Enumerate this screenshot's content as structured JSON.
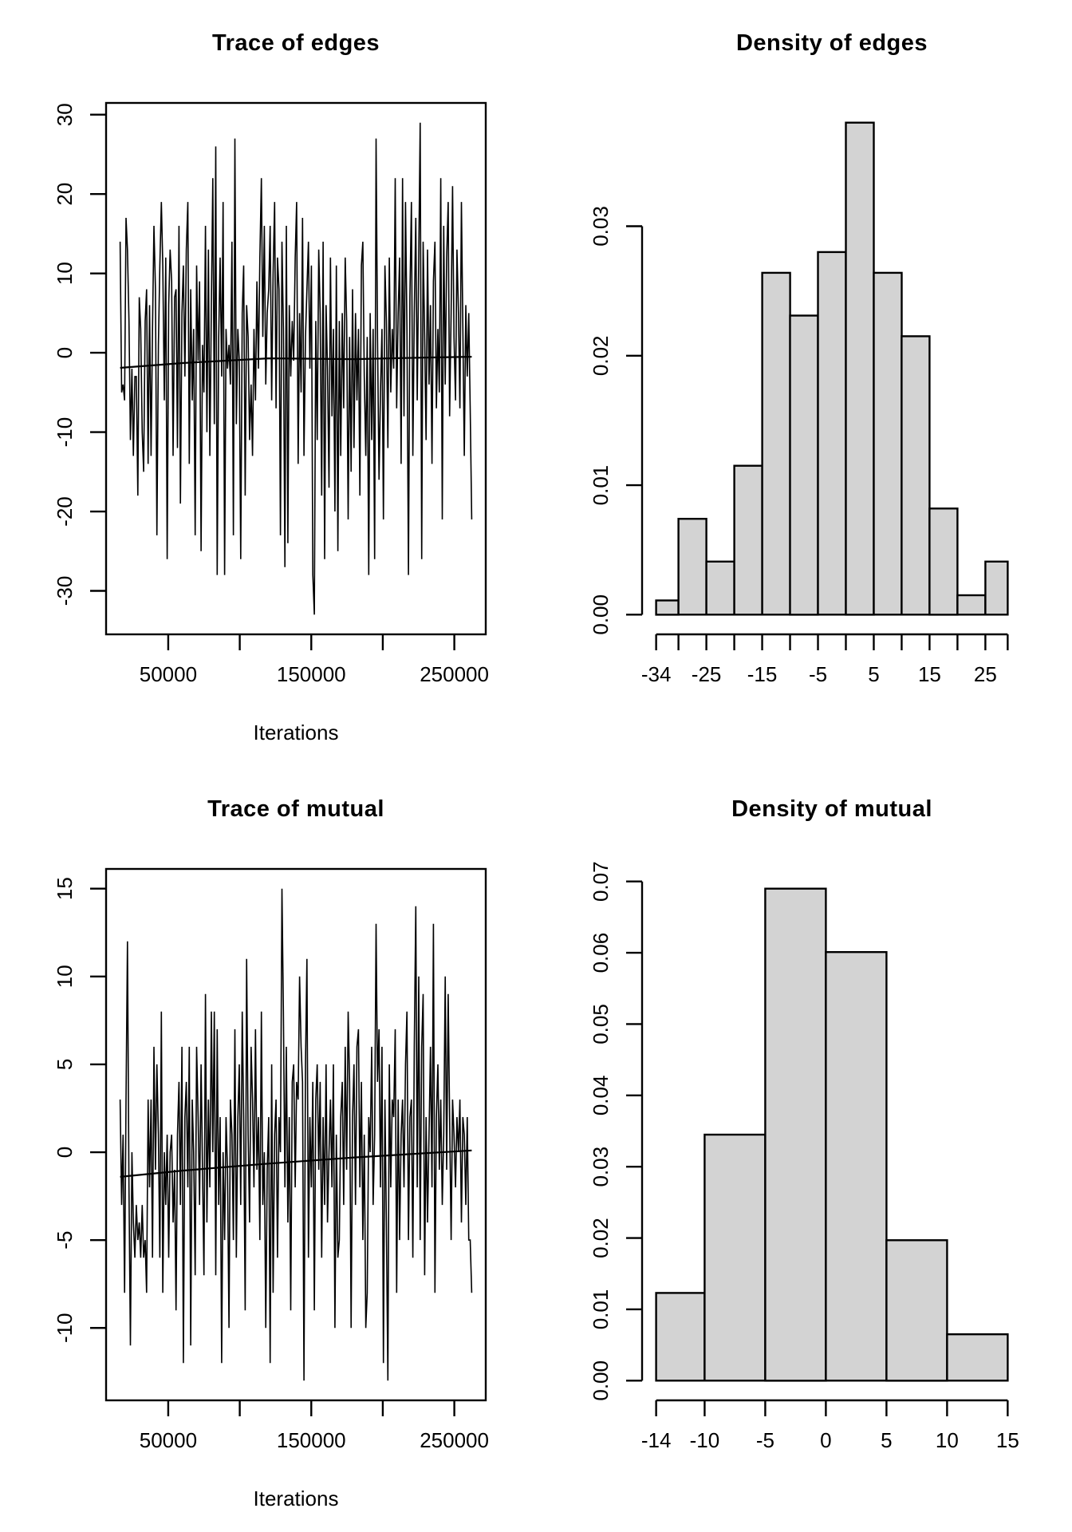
{
  "colors": {
    "background": "#ffffff",
    "foreground": "#000000",
    "histogram_fill": "#d3d3d3"
  },
  "chart_data": [
    {
      "type": "line",
      "title": "Trace of edges",
      "xlabel": "Iterations",
      "xlim": [
        6554,
        271974
      ],
      "ylim": [
        -35.48,
        31.48
      ],
      "x_start": 16384,
      "x_step": 1028.28,
      "xtick_values": [
        50000,
        100000,
        150000,
        200000,
        250000
      ],
      "xtick_labels": [
        "50000",
        "",
        "150000",
        "",
        "250000"
      ],
      "ytick_values": [
        30,
        20,
        10,
        0,
        -10,
        -20,
        -30
      ],
      "ytick_labels": [
        "30",
        "20",
        "10",
        "0",
        "-10",
        "-20",
        "-30"
      ],
      "values": [
        14,
        -5,
        -4,
        -6,
        17,
        13,
        4,
        -11,
        -2,
        -13,
        -3,
        -3,
        -18,
        7,
        3,
        -10,
        -15,
        4,
        8,
        -14,
        6,
        -13,
        3,
        16,
        8,
        -23,
        1,
        11,
        19,
        11,
        -6,
        12,
        -26,
        6,
        13,
        9,
        -13,
        7,
        8,
        -12,
        16,
        -19,
        5,
        11,
        -3,
        13,
        19,
        -14,
        8,
        -6,
        3,
        -23,
        11,
        -1,
        9,
        -25,
        1,
        -5,
        16,
        -10,
        13,
        -13,
        6,
        22,
        -9,
        26,
        -28,
        2,
        12,
        -3,
        19,
        -28,
        3,
        -2,
        1,
        -4,
        14,
        -23,
        27,
        -9,
        3,
        -1,
        -26,
        5,
        11,
        -18,
        6,
        2,
        -11,
        -4,
        -13,
        3,
        -6,
        9,
        -2,
        12,
        22,
        2,
        16,
        -4,
        5,
        8,
        16,
        -6,
        10,
        19,
        -7,
        12,
        8,
        -23,
        14,
        3,
        -27,
        16,
        -24,
        6,
        -3,
        4,
        -1,
        12,
        19,
        -14,
        5,
        -5,
        17,
        -13,
        2,
        8,
        14,
        -2,
        11,
        -28,
        -33,
        4,
        -11,
        13,
        5,
        -18,
        14,
        -26,
        6,
        -2,
        -17,
        12,
        -8,
        3,
        -20,
        11,
        -25,
        4,
        -13,
        5,
        -7,
        12,
        4,
        -21,
        2,
        -15,
        8,
        -12,
        5,
        -6,
        3,
        -18,
        11,
        14,
        -3,
        -13,
        2,
        -28,
        5,
        -11,
        3,
        -26,
        27,
        2,
        -16,
        -5,
        3,
        -21,
        11,
        4,
        -12,
        12,
        -5,
        3,
        -2,
        22,
        -7,
        5,
        12,
        -14,
        22,
        -8,
        19,
        3,
        -28,
        7,
        19,
        -13,
        5,
        17,
        -6,
        12,
        29,
        -26,
        14,
        2,
        -11,
        13,
        -4,
        6,
        -14,
        9,
        14,
        -7,
        3,
        -5,
        22,
        -21,
        16,
        -4,
        12,
        19,
        -8,
        5,
        21,
        2,
        -6,
        13,
        5,
        -7,
        19,
        3,
        -13,
        6,
        -3,
        5,
        -7,
        -21
      ],
      "smooth": {
        "x": [
          16384,
          60000,
          120000,
          180000,
          230000,
          262144
        ],
        "y": [
          -1.9,
          -1.3,
          -0.7,
          -0.8,
          -0.6,
          -0.5
        ]
      }
    },
    {
      "type": "bar",
      "title": "Density of edges",
      "xlabel": "",
      "xlim": [
        -36.52,
        31.52
      ],
      "ylim": [
        -0.00152,
        0.03952
      ],
      "bin_edges": [
        -34,
        -30,
        -25,
        -20,
        -15,
        -10,
        -5,
        0,
        5,
        10,
        15,
        20,
        25,
        29
      ],
      "densities": [
        0.0011,
        0.0074,
        0.0041,
        0.0115,
        0.0264,
        0.0231,
        0.028,
        0.038,
        0.0264,
        0.0215,
        0.0082,
        0.0015,
        0.0041
      ],
      "xtick_values": [
        -34,
        -30,
        -25,
        -20,
        -15,
        -10,
        -5,
        0,
        5,
        10,
        15,
        20,
        25,
        29
      ],
      "xtick_labels": [
        "-34",
        "",
        "-25",
        "",
        "-15",
        "",
        "-5",
        "",
        "5",
        "",
        "15",
        "",
        "25",
        ""
      ],
      "ytick_values": [
        0,
        0.01,
        0.02,
        0.03
      ],
      "ytick_labels": [
        "0.00",
        "0.01",
        "0.02",
        "0.03"
      ]
    },
    {
      "type": "line",
      "title": "Trace of mutual",
      "xlabel": "Iterations",
      "xlim": [
        6554,
        271974
      ],
      "ylim": [
        -14.12,
        16.12
      ],
      "x_start": 16384,
      "x_step": 1028.28,
      "xtick_values": [
        50000,
        100000,
        150000,
        200000,
        250000
      ],
      "xtick_labels": [
        "50000",
        "",
        "150000",
        "",
        "250000"
      ],
      "ytick_values": [
        15,
        10,
        5,
        0,
        -5,
        -10
      ],
      "ytick_labels": [
        "15",
        "10",
        "5",
        "0",
        "-5",
        "-10"
      ],
      "values": [
        3,
        -3,
        1,
        -8,
        3,
        12,
        -2,
        -11,
        0,
        -4,
        -6,
        -3,
        -5,
        -4,
        -6,
        -3,
        -6,
        -5,
        -8,
        3,
        -2,
        3,
        -6,
        6,
        -1,
        5,
        1,
        -6,
        8,
        -8,
        0,
        -3,
        1,
        -6,
        0,
        1,
        -4,
        -1,
        -9,
        1,
        4,
        -3,
        6,
        -12,
        2,
        4,
        -2,
        6,
        -11,
        3,
        0,
        -7,
        6,
        2,
        -3,
        5,
        -1,
        -7,
        9,
        -4,
        3,
        -2,
        8,
        0,
        8,
        -7,
        7,
        -3,
        2,
        -12,
        0,
        -5,
        2,
        -1,
        -10,
        3,
        1,
        -5,
        7,
        -6,
        2,
        5,
        -3,
        8,
        2,
        -9,
        11,
        1,
        -4,
        6,
        3,
        -2,
        7,
        -1,
        2,
        -5,
        8,
        -3,
        0,
        -10,
        -1,
        2,
        -12,
        5,
        -8,
        1,
        3,
        -6,
        2,
        0,
        15,
        8,
        -2,
        6,
        -4,
        2,
        -9,
        4,
        5,
        -2,
        4,
        3,
        10,
        6,
        4,
        -13,
        5,
        11,
        -6,
        2,
        -2,
        4,
        -9,
        3,
        5,
        -1,
        4,
        -6,
        2,
        -3,
        5,
        -4,
        0,
        3,
        -2,
        5,
        -10,
        1,
        -6,
        -5,
        2,
        4,
        -3,
        6,
        -1,
        8,
        4,
        -10,
        2,
        5,
        -3,
        6,
        7,
        -2,
        4,
        -5,
        1,
        -10,
        -8,
        2,
        0,
        6,
        -3,
        1,
        13,
        4,
        7,
        -2,
        6,
        -12,
        3,
        -4,
        -13,
        5,
        -2,
        3,
        2,
        7,
        -8,
        3,
        -5,
        1,
        3,
        -2,
        5,
        8,
        -5,
        2,
        3,
        -6,
        6,
        14,
        -2,
        10,
        -5,
        6,
        9,
        -7,
        2,
        -4,
        1,
        6,
        -2,
        13,
        -8,
        2,
        5,
        -1,
        3,
        -3,
        1,
        10,
        -1,
        9,
        2,
        -5,
        3,
        1,
        -2,
        2,
        0,
        3,
        -4,
        2,
        1,
        -3,
        2,
        -5,
        -5,
        -8
      ],
      "smooth": {
        "x": [
          16384,
          60000,
          120000,
          180000,
          262144
        ],
        "y": [
          -1.4,
          -1.05,
          -0.65,
          -0.3,
          0.1
        ]
      }
    },
    {
      "type": "bar",
      "title": "Density of mutual",
      "xlabel": "",
      "xlim": [
        -15.16,
        16.16
      ],
      "ylim": [
        -0.00276,
        0.07176
      ],
      "bin_edges": [
        -14,
        -10,
        -5,
        0,
        5,
        10,
        15
      ],
      "densities": [
        0.0123,
        0.0345,
        0.069,
        0.0601,
        0.0197,
        0.0065
      ],
      "xtick_values": [
        -14,
        -10,
        -5,
        0,
        5,
        10,
        15
      ],
      "xtick_labels": [
        "-14",
        "-10",
        "-5",
        "0",
        "5",
        "10",
        "15"
      ],
      "ytick_values": [
        0,
        0.01,
        0.02,
        0.03,
        0.04,
        0.05,
        0.06,
        0.07
      ],
      "ytick_labels": [
        "0.00",
        "0.01",
        "0.02",
        "0.03",
        "0.04",
        "0.05",
        "0.06",
        "0.07"
      ]
    }
  ]
}
